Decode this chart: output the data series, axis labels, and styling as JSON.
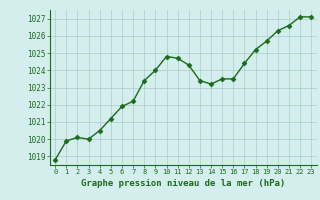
{
  "x": [
    0,
    1,
    2,
    3,
    4,
    5,
    6,
    7,
    8,
    9,
    10,
    11,
    12,
    13,
    14,
    15,
    16,
    17,
    18,
    19,
    20,
    21,
    22,
    23
  ],
  "y": [
    1018.8,
    1019.9,
    1020.1,
    1020.0,
    1020.5,
    1021.2,
    1021.9,
    1022.2,
    1023.4,
    1024.0,
    1024.8,
    1024.7,
    1024.3,
    1023.4,
    1023.2,
    1023.5,
    1023.5,
    1024.4,
    1025.2,
    1025.7,
    1026.3,
    1026.6,
    1027.1,
    1027.1
  ],
  "line_color": "#1a6b1a",
  "marker": "D",
  "marker_size": 2.5,
  "bg_color": "#d4eeee",
  "grid_color": "#aacccc",
  "xlabel": "Graphe pression niveau de la mer (hPa)",
  "xlabel_color": "#1a6b1a",
  "tick_color": "#1a6b1a",
  "ylim": [
    1018.5,
    1027.5
  ],
  "yticks": [
    1019,
    1020,
    1021,
    1022,
    1023,
    1024,
    1025,
    1026,
    1027
  ],
  "xticks": [
    0,
    1,
    2,
    3,
    4,
    5,
    6,
    7,
    8,
    9,
    10,
    11,
    12,
    13,
    14,
    15,
    16,
    17,
    18,
    19,
    20,
    21,
    22,
    23
  ],
  "line_width": 1.0
}
